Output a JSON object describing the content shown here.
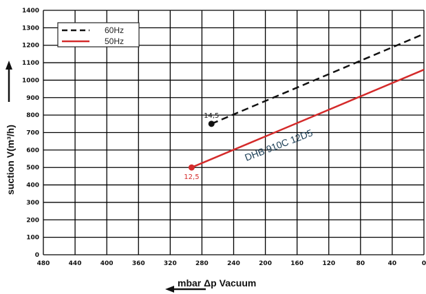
{
  "chart_data": {
    "type": "line",
    "xlabel": "mbar Δp Vacuum",
    "ylabel": "suction V(m³/h)",
    "x_ticks": [
      480,
      440,
      400,
      360,
      320,
      280,
      240,
      200,
      160,
      120,
      80,
      40,
      0
    ],
    "y_ticks": [
      0,
      100,
      200,
      300,
      400,
      500,
      600,
      700,
      800,
      900,
      1000,
      1100,
      1200,
      1300,
      1400
    ],
    "xlim": [
      480,
      0
    ],
    "ylim": [
      0,
      1400
    ],
    "x_reversed": true,
    "grid": true,
    "legend_position": "top-left",
    "series": [
      {
        "name": "60Hz",
        "color": "#111111",
        "dash": true,
        "x": [
          268,
          0
        ],
        "y": [
          750,
          1265
        ],
        "start_point_label": "14,5",
        "start_point_label_color": "#111111"
      },
      {
        "name": "50Hz",
        "color": "#d42a2a",
        "dash": false,
        "x": [
          293,
          0
        ],
        "y": [
          500,
          1060
        ],
        "start_point_label": "12,5",
        "start_point_label_color": "#d42a2a"
      }
    ],
    "curve_label": "DHB 910C 12D5"
  }
}
